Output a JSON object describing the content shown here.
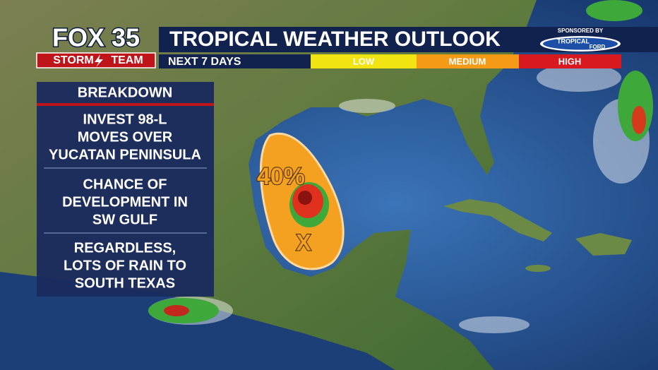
{
  "header": {
    "logo": "FOX 35",
    "brand": {
      "left": "STORM",
      "right": "TEAM"
    },
    "title": "TROPICAL WEATHER OUTLOOK",
    "subtitle": "NEXT 7 DAYS",
    "sponsor": {
      "label": "SPONSORED BY",
      "name": [
        "TROPICAL",
        "FORD"
      ]
    }
  },
  "legend": [
    "LOW",
    "MEDIUM",
    "HIGH"
  ],
  "breakdown": {
    "title": "BREAKDOWN",
    "items": [
      [
        "INVEST 98-L",
        "MOVES OVER",
        "YUCATAN PENINSULA"
      ],
      [
        "CHANCE OF",
        "DEVELOPMENT IN",
        "SW GULF"
      ],
      [
        "REGARDLESS,",
        "LOTS OF RAIN TO",
        "SOUTH TEXAS"
      ]
    ]
  },
  "map": {
    "zone_label": "40%",
    "center_marker": "X"
  }
}
